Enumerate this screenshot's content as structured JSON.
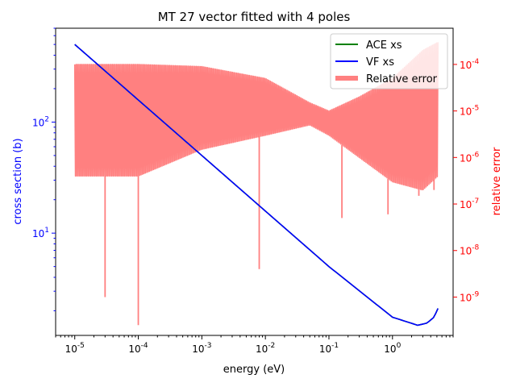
{
  "chart_data": {
    "type": "line",
    "title": "MT 27 vector fitted with 4 poles",
    "xlabel": "energy (eV)",
    "ylabel": "cross section (b)",
    "y2label": "relative error",
    "xscale": "log",
    "yscale": "log",
    "y2scale": "log",
    "xlim": [
      5e-06,
      9.0
    ],
    "ylim": [
      1.2,
      700
    ],
    "y2lim": [
      1.5e-10,
      0.0006
    ],
    "x_ticks": [
      "10^-5",
      "10^-4",
      "10^-3",
      "10^-2",
      "10^-1",
      "10^0"
    ],
    "y_ticks": [
      "10^1",
      "10^2"
    ],
    "y2_ticks": [
      "10^-9",
      "10^-8",
      "10^-7",
      "10^-6",
      "10^-5",
      "10^-4"
    ],
    "legend_position": "top-right",
    "colors": {
      "ace": "#008000",
      "vf": "#0000ff",
      "error": "#ff8080",
      "left_axis": "#0000ff",
      "right_axis": "#ff0000"
    },
    "series": [
      {
        "name": "ACE xs",
        "axis": "left",
        "color": "#008000",
        "x": [
          1e-05,
          0.0001,
          0.001,
          0.01,
          0.1,
          1,
          2.5,
          3.5,
          4.5,
          5.2
        ],
        "y": [
          500,
          158,
          50,
          15.8,
          5.0,
          1.75,
          1.48,
          1.55,
          1.75,
          2.1
        ]
      },
      {
        "name": "VF xs",
        "axis": "left",
        "color": "#0000ff",
        "x": [
          1e-05,
          0.0001,
          0.001,
          0.01,
          0.1,
          1,
          2.5,
          3.5,
          4.5,
          5.2
        ],
        "y": [
          500,
          158,
          50,
          15.8,
          5.0,
          1.75,
          1.48,
          1.55,
          1.75,
          2.1
        ]
      },
      {
        "name": "Relative error",
        "axis": "right",
        "color": "#ff8080",
        "x": [
          1e-05,
          0.0001,
          0.001,
          0.01,
          0.05,
          0.1,
          0.3,
          1,
          3,
          5.2
        ],
        "upper": [
          0.0001,
          0.0001,
          9e-05,
          5e-05,
          1.5e-05,
          1e-05,
          2e-05,
          5e-05,
          0.0002,
          0.0003
        ],
        "lower": [
          4e-07,
          4e-07,
          1.5e-06,
          3e-06,
          5e-06,
          3e-06,
          1e-06,
          3e-07,
          2e-07,
          4e-07
        ],
        "spikes": [
          {
            "x": 3e-05,
            "y": 1e-09
          },
          {
            "x": 0.0001,
            "y": 2.5e-10
          },
          {
            "x": 0.008,
            "y": 4e-09
          },
          {
            "x": 0.16,
            "y": 5e-08
          },
          {
            "x": 0.85,
            "y": 6e-08
          },
          {
            "x": 2.6,
            "y": 1.5e-07
          },
          {
            "x": 4.5,
            "y": 2e-07
          }
        ]
      }
    ]
  }
}
